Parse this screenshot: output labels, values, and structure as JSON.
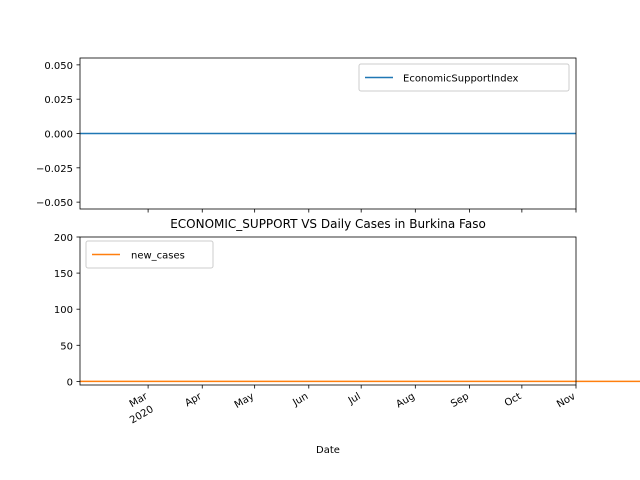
{
  "chart_data": [
    {
      "type": "line",
      "series": [
        {
          "name": "EconomicSupportIndex",
          "color": "#1f77b4",
          "x": [
            "2020-01-22",
            "2020-11-01"
          ],
          "values": [
            0,
            0
          ]
        }
      ],
      "ylim": [
        -0.055,
        0.055
      ],
      "yticks": [
        -0.05,
        -0.025,
        0.0,
        0.025,
        0.05
      ],
      "ytick_labels": [
        "−0.050",
        "−0.025",
        "0.000",
        "0.025",
        "0.050"
      ],
      "legend": {
        "position": "top-right",
        "entries": [
          "EconomicSupportIndex"
        ]
      },
      "grid": false,
      "shares_x_axis_with_next": true
    },
    {
      "type": "line",
      "title": "ECONOMIC_SUPPORT VS Daily Cases in Burkina Faso",
      "xlabel": "Date",
      "xlim": [
        "2020-01-22",
        "2020-11-01"
      ],
      "xticks": [
        {
          "date": "2020-03-01",
          "label": "Mar",
          "sub": "2020"
        },
        {
          "date": "2020-04-01",
          "label": "Apr",
          "sub": ""
        },
        {
          "date": "2020-05-01",
          "label": "May",
          "sub": ""
        },
        {
          "date": "2020-06-01",
          "label": "Jun",
          "sub": ""
        },
        {
          "date": "2020-07-01",
          "label": "Jul",
          "sub": ""
        },
        {
          "date": "2020-08-01",
          "label": "Aug",
          "sub": ""
        },
        {
          "date": "2020-09-01",
          "label": "Sep",
          "sub": ""
        },
        {
          "date": "2020-10-01",
          "label": "Oct",
          "sub": ""
        },
        {
          "date": "2020-11-01",
          "label": "Nov",
          "sub": ""
        }
      ],
      "ylim": [
        -5,
        200
      ],
      "yticks": [
        0,
        50,
        100,
        150,
        200
      ],
      "ytick_labels": [
        "0",
        "50",
        "100",
        "150",
        "200"
      ],
      "legend": {
        "position": "top-left",
        "entries": [
          "new_cases"
        ]
      },
      "grid": false,
      "series": [
        {
          "name": "new_cases",
          "color": "#ff7f0e",
          "start_date": "2020-01-22",
          "values": [
            0,
            0,
            0,
            0,
            0,
            0,
            0,
            0,
            0,
            0,
            0,
            0,
            0,
            0,
            0,
            0,
            0,
            0,
            0,
            0,
            0,
            0,
            0,
            0,
            0,
            0,
            0,
            0,
            0,
            0,
            0,
            0,
            0,
            0,
            0,
            0,
            0,
            0,
            0,
            0,
            0,
            0,
            0,
            0,
            0,
            0,
            0,
            0,
            0,
            0,
            0,
            0,
            0,
            0,
            0,
            0,
            0,
            0,
            0,
            0,
            0,
            0,
            0,
            0,
            0,
            0,
            0,
            0,
            0,
            0,
            0,
            0,
            0,
            0,
            0,
            0,
            0,
            0,
            0,
            0,
            0,
            0,
            0,
            0,
            0,
            0,
            0,
            0,
            0,
            0,
            0,
            0,
            0,
            0,
            0,
            0,
            0,
            0,
            0,
            0,
            0,
            0,
            0,
            0,
            0,
            0,
            0,
            0,
            0,
            0,
            0,
            0,
            0,
            0,
            0,
            0,
            0,
            0,
            0,
            0,
            0,
            0,
            0,
            0,
            0,
            0,
            0,
            0,
            0,
            0,
            0,
            0,
            0,
            0,
            0,
            0,
            0,
            0,
            0,
            0,
            0,
            0,
            0,
            0,
            0,
            0,
            0,
            0,
            0,
            0,
            0,
            0,
            0,
            0,
            0,
            0,
            0,
            0,
            0,
            0,
            0,
            0,
            0,
            0,
            0,
            0,
            0,
            0,
            0,
            0,
            0,
            0,
            0,
            0,
            0,
            0,
            0,
            0,
            0,
            0,
            0,
            0,
            0,
            0,
            0,
            0,
            0,
            0,
            0,
            0,
            0,
            0,
            0,
            0,
            0,
            0,
            0,
            0,
            0,
            0,
            0,
            0,
            0,
            0,
            0,
            0,
            0,
            0,
            0,
            0,
            0,
            0,
            0,
            0,
            0,
            0,
            0,
            0,
            0,
            0,
            0,
            0,
            0,
            0,
            0,
            0,
            0,
            0,
            0,
            0,
            0,
            0,
            0,
            0,
            0,
            0,
            0,
            0,
            0,
            0,
            0,
            0,
            0,
            0,
            0,
            0,
            0,
            0,
            0,
            0,
            0,
            0,
            0,
            0,
            0,
            0,
            0,
            0,
            0,
            0,
            0,
            0,
            0,
            0,
            0,
            0,
            0,
            0,
            0,
            0,
            0,
            0,
            0,
            0,
            0,
            0,
            0,
            0,
            0,
            0,
            0,
            0,
            0,
            0,
            0,
            0,
            0,
            0,
            0,
            0,
            0,
            0,
            0,
            0,
            0,
            0,
            0,
            0,
            0,
            0,
            0,
            0,
            0,
            0,
            0,
            0,
            0,
            0,
            0,
            0,
            0,
            0,
            0,
            0,
            0,
            0,
            0,
            0,
            0,
            0,
            0,
            0,
            0,
            0,
            0,
            0,
            0,
            0,
            0,
            0,
            0,
            0,
            0,
            0,
            0,
            0,
            0,
            0,
            0,
            0,
            0,
            0,
            0,
            0,
            0,
            0,
            0,
            0,
            0,
            0,
            0,
            0,
            0
          ]
        }
      ]
    }
  ]
}
